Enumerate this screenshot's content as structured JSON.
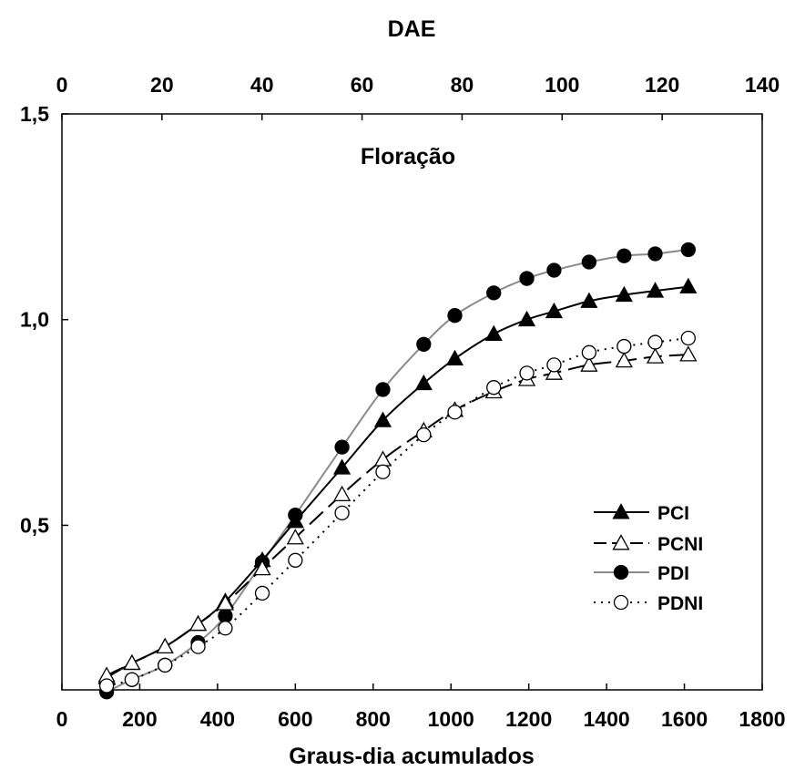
{
  "chart_data": {
    "type": "line",
    "title": "",
    "annotation": "Floração",
    "xlabel": "Graus-dia acumulados",
    "x2label": "DAE",
    "ylabel": "",
    "xlim": [
      0,
      1800
    ],
    "x2lim": [
      0,
      140
    ],
    "ylim": [
      0.1,
      1.5
    ],
    "x_ticks": [
      "0",
      "200",
      "400",
      "600",
      "800",
      "1000",
      "1200",
      "1400",
      "1600",
      "1800"
    ],
    "x_tick_values": [
      0,
      200,
      400,
      600,
      800,
      1000,
      1200,
      1400,
      1600,
      1800
    ],
    "x2_ticks": [
      "0",
      "20",
      "40",
      "60",
      "80",
      "100",
      "120",
      "140"
    ],
    "x2_tick_values": [
      0,
      20,
      40,
      60,
      80,
      100,
      120,
      140
    ],
    "y_ticks": [
      "0,5",
      "1,0",
      "1,5"
    ],
    "y_tick_values": [
      0.5,
      1.0,
      1.5
    ],
    "legend_position": "right",
    "grid": false,
    "series": [
      {
        "name": "PCI",
        "marker": "filled-triangle",
        "line": "solid-black",
        "x": [
          115,
          180,
          265,
          350,
          420,
          515,
          600,
          720,
          825,
          930,
          1010,
          1110,
          1195,
          1265,
          1355,
          1445,
          1525,
          1610
        ],
        "y": [
          0.13,
          0.165,
          0.205,
          0.26,
          0.315,
          0.415,
          0.51,
          0.64,
          0.755,
          0.845,
          0.905,
          0.965,
          1.0,
          1.02,
          1.045,
          1.06,
          1.07,
          1.08
        ]
      },
      {
        "name": "PCNI",
        "marker": "open-triangle",
        "line": "dashed-black",
        "x": [
          115,
          180,
          265,
          350,
          420,
          515,
          600,
          720,
          825,
          930,
          1010,
          1110,
          1195,
          1265,
          1355,
          1445,
          1525,
          1610
        ],
        "y": [
          0.135,
          0.165,
          0.205,
          0.26,
          0.31,
          0.395,
          0.47,
          0.575,
          0.66,
          0.73,
          0.78,
          0.825,
          0.855,
          0.87,
          0.89,
          0.9,
          0.91,
          0.915
        ]
      },
      {
        "name": "PDI",
        "marker": "filled-circle",
        "line": "solid-gray",
        "x": [
          115,
          180,
          265,
          350,
          420,
          515,
          600,
          720,
          825,
          930,
          1010,
          1110,
          1195,
          1265,
          1355,
          1445,
          1525,
          1610
        ],
        "y": [
          0.095,
          0.125,
          0.16,
          0.215,
          0.28,
          0.41,
          0.525,
          0.69,
          0.83,
          0.94,
          1.01,
          1.065,
          1.1,
          1.12,
          1.14,
          1.155,
          1.16,
          1.17
        ]
      },
      {
        "name": "PDNI",
        "marker": "open-circle",
        "line": "dotted-black",
        "x": [
          115,
          180,
          265,
          350,
          420,
          515,
          600,
          720,
          825,
          930,
          1010,
          1110,
          1195,
          1265,
          1355,
          1445,
          1525,
          1610
        ],
        "y": [
          0.11,
          0.125,
          0.16,
          0.205,
          0.25,
          0.335,
          0.415,
          0.53,
          0.63,
          0.72,
          0.775,
          0.835,
          0.87,
          0.89,
          0.92,
          0.935,
          0.945,
          0.955
        ]
      }
    ]
  }
}
